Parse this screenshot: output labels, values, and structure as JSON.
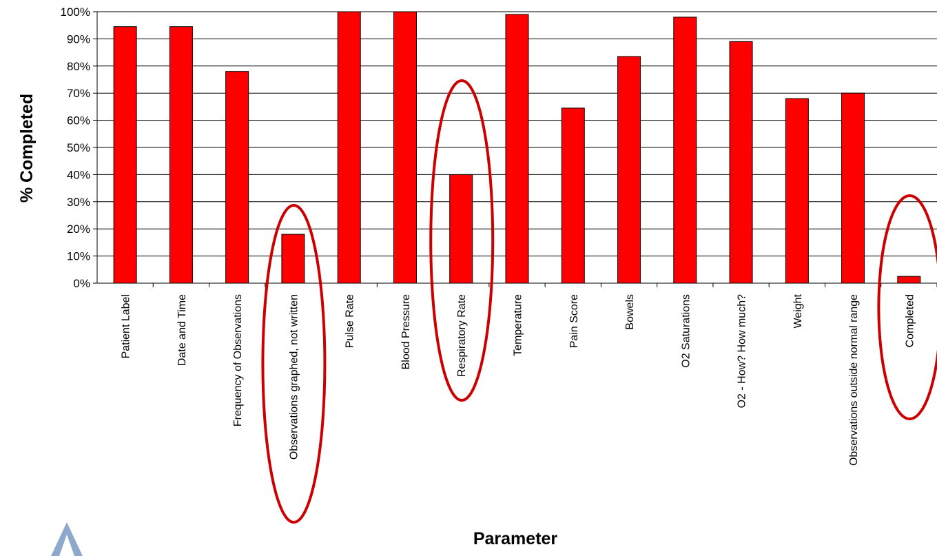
{
  "chart_data": {
    "type": "bar",
    "title": "",
    "xlabel": "Parameter",
    "ylabel": "% Completed",
    "ylim": [
      0,
      100
    ],
    "yticks": [
      "0%",
      "10%",
      "20%",
      "30%",
      "40%",
      "50%",
      "60%",
      "70%",
      "80%",
      "90%",
      "100%"
    ],
    "grid": true,
    "legend": "none",
    "bar_color": "#ff0000",
    "highlight_color": "#cc0000",
    "categories": [
      "Patient Label",
      "Date and Time",
      "Frequency of Observations",
      "Observations graphed, not written",
      "Pulse Rate",
      "Blood Pressure",
      "Respiratory Rate",
      "Temperature",
      "Pain Score",
      "Bowels",
      "O2 Saturations",
      "O2 - How? How much?",
      "Weight",
      "Observations outside normal range",
      "Completed"
    ],
    "values": [
      94.5,
      94.5,
      78,
      18,
      100,
      100,
      40,
      99,
      64.5,
      83.5,
      98,
      89,
      68,
      70,
      2.5
    ],
    "highlighted": [
      "Observations graphed, not written",
      "Respiratory Rate",
      "Completed"
    ]
  },
  "logo": {
    "name": "triangle-logo",
    "color": "#8fa9cc"
  }
}
